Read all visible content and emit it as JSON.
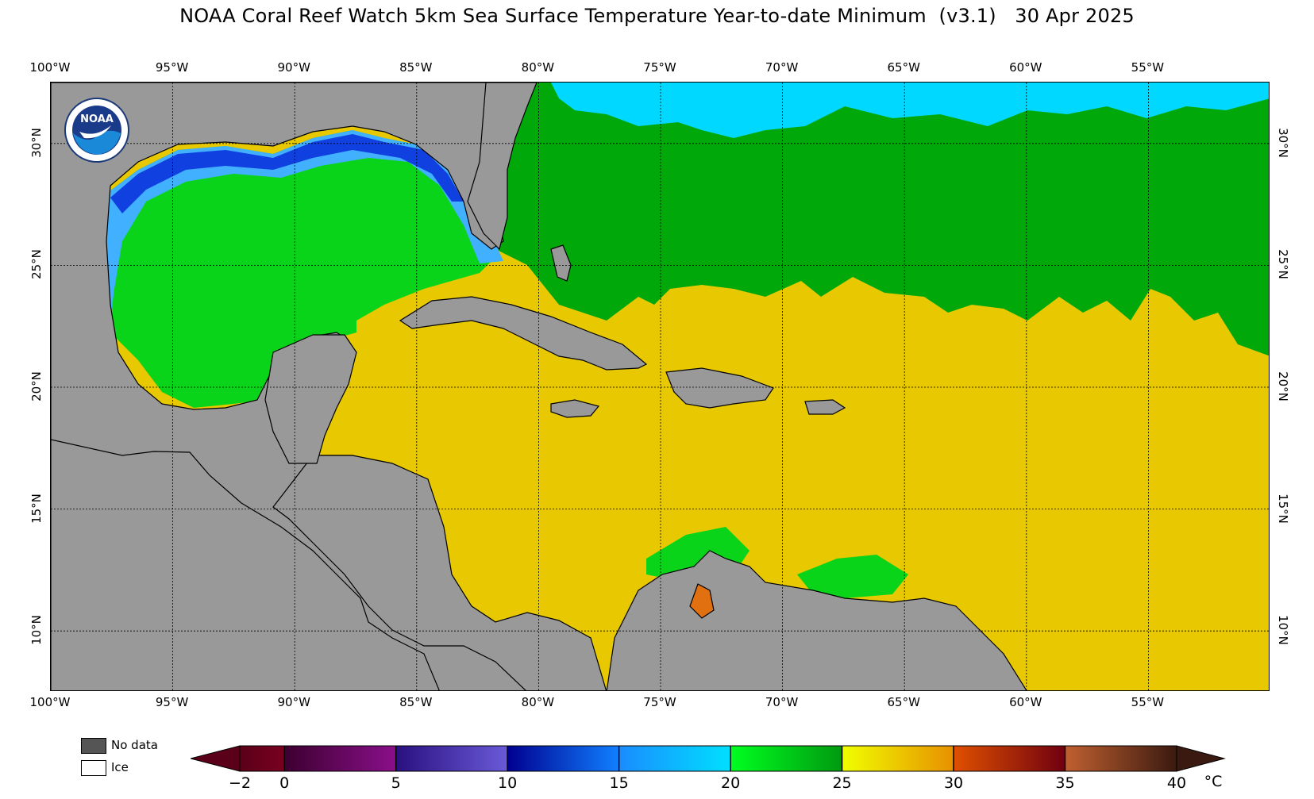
{
  "title": "NOAA Coral Reef Watch 5km Sea Surface Temperature Year-to-date Minimum  (v3.1)   30 Apr 2025",
  "logo_text": "NOAA",
  "lon_labels": [
    "100°W",
    "95°W",
    "90°W",
    "85°W",
    "80°W",
    "75°W",
    "70°W",
    "65°W",
    "60°W",
    "55°W"
  ],
  "lat_labels": [
    "30°N",
    "25°N",
    "20°N",
    "15°N",
    "10°N"
  ],
  "legend": {
    "no_data": "No data",
    "ice": "Ice",
    "no_data_color": "#555555",
    "ice_color": "#ffffff"
  },
  "colorbar": {
    "ticks": [
      "−2",
      "0",
      "5",
      "10",
      "15",
      "20",
      "25",
      "30",
      "35",
      "40"
    ],
    "unit": "°C",
    "segments": [
      {
        "from": -2,
        "to": 0,
        "start": "#5a0018",
        "end": "#7a0020"
      },
      {
        "from": 0,
        "to": 5,
        "start": "#3d0030",
        "end": "#8a0f8a"
      },
      {
        "from": 5,
        "to": 10,
        "start": "#2a1080",
        "end": "#6a5ad8"
      },
      {
        "from": 10,
        "to": 15,
        "start": "#000090",
        "end": "#1080ff"
      },
      {
        "from": 15,
        "to": 20,
        "start": "#1a8cff",
        "end": "#00e0ff"
      },
      {
        "from": 20,
        "to": 25,
        "start": "#00ff20",
        "end": "#009a10"
      },
      {
        "from": 25,
        "to": 30,
        "start": "#f0ff00",
        "end": "#e89000"
      },
      {
        "from": 30,
        "to": 35,
        "start": "#e05000",
        "end": "#700010"
      },
      {
        "from": 35,
        "to": 40,
        "start": "#c06030",
        "end": "#3a1a10"
      }
    ]
  },
  "colors": {
    "land": "#999999",
    "deep_green": "#00a80a",
    "green": "#0ad41a",
    "bright_green": "#10e830",
    "cyan": "#00d8ff",
    "light_blue": "#40b0ff",
    "blue": "#1040e0",
    "yellow": "#e6f000",
    "yellow_orange": "#e8c800",
    "orange": "#e4b000",
    "hot_orange": "#e07010"
  }
}
